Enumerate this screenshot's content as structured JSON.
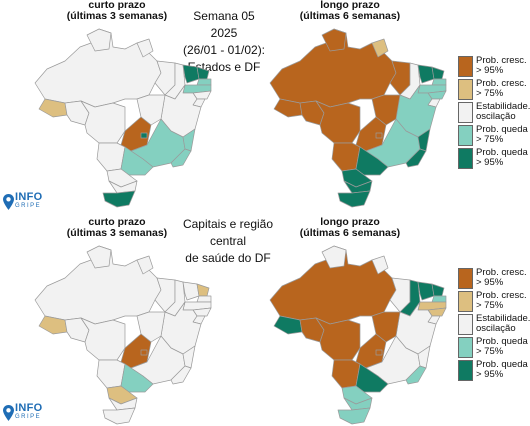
{
  "colors": {
    "cresc95": "#b8651e",
    "cresc75": "#ddbf80",
    "estab": "#f2f2f2",
    "queda75": "#84d0c0",
    "queda95": "#0f7a62",
    "border": "#9a9a9a"
  },
  "top": {
    "center_title": [
      "Semana 05 2025",
      "(26/01 - 01/02):",
      "Estados e DF"
    ],
    "left_title": [
      "curto prazo",
      "(últimas 3 semanas)"
    ],
    "right_title": [
      "longo prazo",
      "(últimas 6 semanas)"
    ],
    "left_map": {
      "north": "estab",
      "to": "estab",
      "ac": "cresc75",
      "ro": "estab",
      "mt": "estab",
      "rs": "queda95",
      "go": "cresc95",
      "df": "queda95",
      "ms": "estab",
      "mg": "queda75",
      "es": "queda75",
      "rj": "queda75",
      "sp": "queda75",
      "pr": "estab",
      "sc": "estab",
      "ba": "estab",
      "pi": "estab",
      "ma": "estab",
      "ce": "queda95",
      "rn": "queda95",
      "pb": "queda75",
      "pe": "queda75",
      "al": "estab",
      "se": "estab",
      "ap": "estab",
      "rr": "estab"
    },
    "right_map": {
      "north": "cresc95",
      "to": "cresc95",
      "ac": "cresc95",
      "ro": "cresc95",
      "mt": "cresc95",
      "rs": "queda95",
      "go": "cresc95",
      "df": "cresc95",
      "ms": "cresc95",
      "mg": "queda75",
      "es": "queda95",
      "rj": "queda95",
      "sp": "queda95",
      "pr": "queda95",
      "sc": "queda95",
      "ba": "queda75",
      "pi": "estab",
      "ma": "cresc95",
      "ce": "queda95",
      "rn": "queda95",
      "pb": "queda75",
      "pe": "queda75",
      "al": "queda75",
      "se": "estab",
      "ap": "cresc75",
      "rr": "cresc95"
    }
  },
  "bottom": {
    "center_title": [
      "Capitais e região central",
      "de saúde do DF"
    ],
    "left_title": [
      "curto prazo",
      "(últimas 3 semanas)"
    ],
    "right_title": [
      "longo prazo",
      "(últimas 6 semanas)"
    ],
    "left_map": {
      "north": "estab",
      "to": "estab",
      "ac": "cresc75",
      "ro": "estab",
      "mt": "estab",
      "rs": "estab",
      "go": "cresc95",
      "df": "cresc95",
      "ms": "estab",
      "mg": "estab",
      "es": "estab",
      "rj": "estab",
      "sp": "queda75",
      "pr": "cresc75",
      "sc": "estab",
      "ba": "estab",
      "pi": "estab",
      "ma": "estab",
      "ce": "estab",
      "rn": "cresc75",
      "pb": "estab",
      "pe": "estab",
      "al": "estab",
      "se": "estab",
      "ap": "estab",
      "rr": "estab"
    },
    "right_map": {
      "north": "cresc95",
      "to": "cresc95",
      "ac": "queda95",
      "ro": "cresc95",
      "mt": "cresc95",
      "rs": "queda75",
      "go": "cresc95",
      "df": "cresc95",
      "ms": "cresc95",
      "mg": "estab",
      "es": "estab",
      "rj": "queda75",
      "sp": "queda95",
      "pr": "queda75",
      "sc": "queda75",
      "ba": "estab",
      "pi": "queda95",
      "ma": "estab",
      "ce": "queda95",
      "rn": "queda95",
      "pb": "queda75",
      "pe": "cresc75",
      "al": "cresc75",
      "se": "estab",
      "ap": "estab",
      "rr": "estab"
    }
  },
  "legend": [
    {
      "key": "cresc95",
      "lines": [
        "Prob. cresc.",
        "> 95%"
      ]
    },
    {
      "key": "cresc75",
      "lines": [
        "Prob. cresc.",
        "> 75%"
      ]
    },
    {
      "key": "estab",
      "lines": [
        "Estabilidade./",
        "oscilação"
      ]
    },
    {
      "key": "queda75",
      "lines": [
        "Prob. queda",
        "> 75%"
      ]
    },
    {
      "key": "queda95",
      "lines": [
        "Prob. queda",
        "> 95%"
      ]
    }
  ],
  "logo": {
    "main": "INFO",
    "sub": "GRIPE"
  }
}
